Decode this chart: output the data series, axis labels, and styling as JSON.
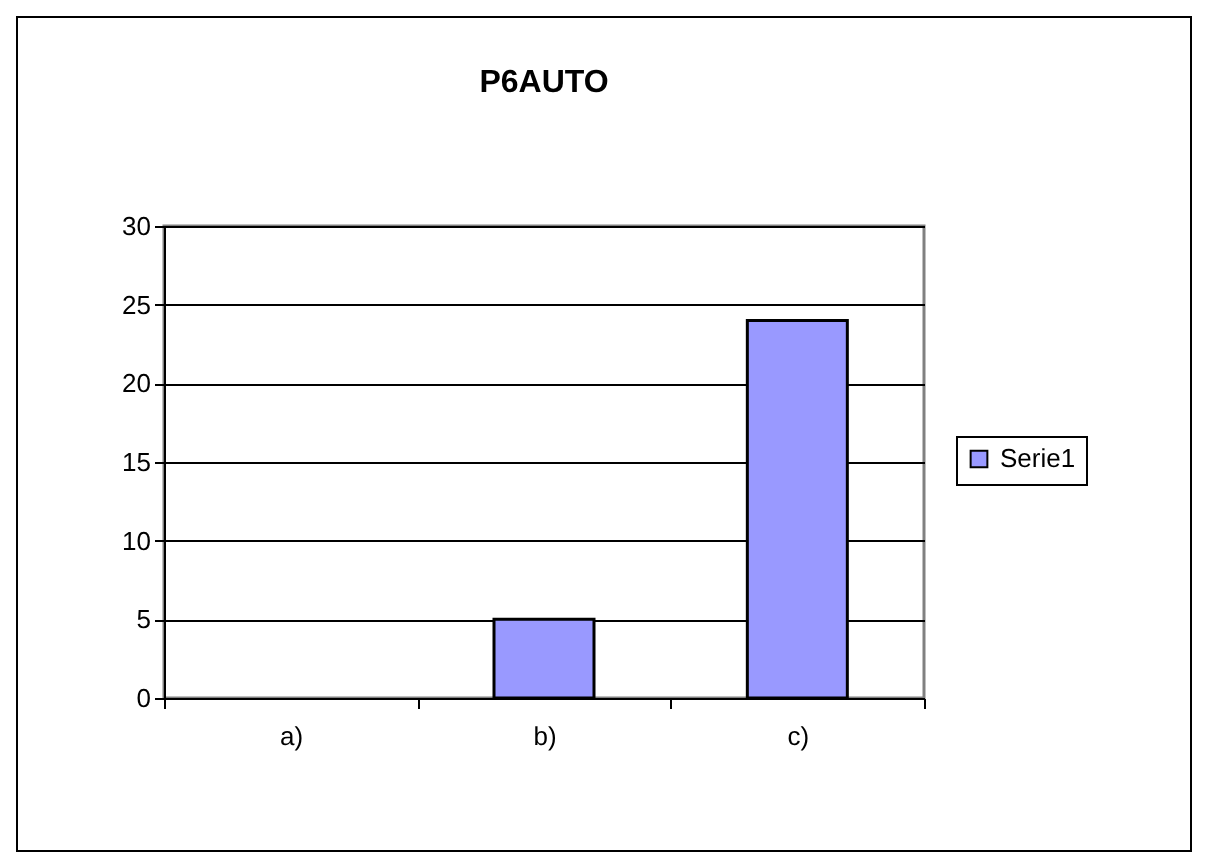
{
  "chart_data": {
    "type": "bar",
    "title": "P6AUTO",
    "categories": [
      "a)",
      "b)",
      "c)"
    ],
    "series": [
      {
        "name": "Serie1",
        "color": "#9999ff",
        "values": [
          0,
          5,
          24
        ]
      }
    ],
    "ylim": [
      0,
      30
    ],
    "yticks": [
      0,
      5,
      10,
      15,
      20,
      25,
      30
    ],
    "grid": "y",
    "legend": "right"
  }
}
